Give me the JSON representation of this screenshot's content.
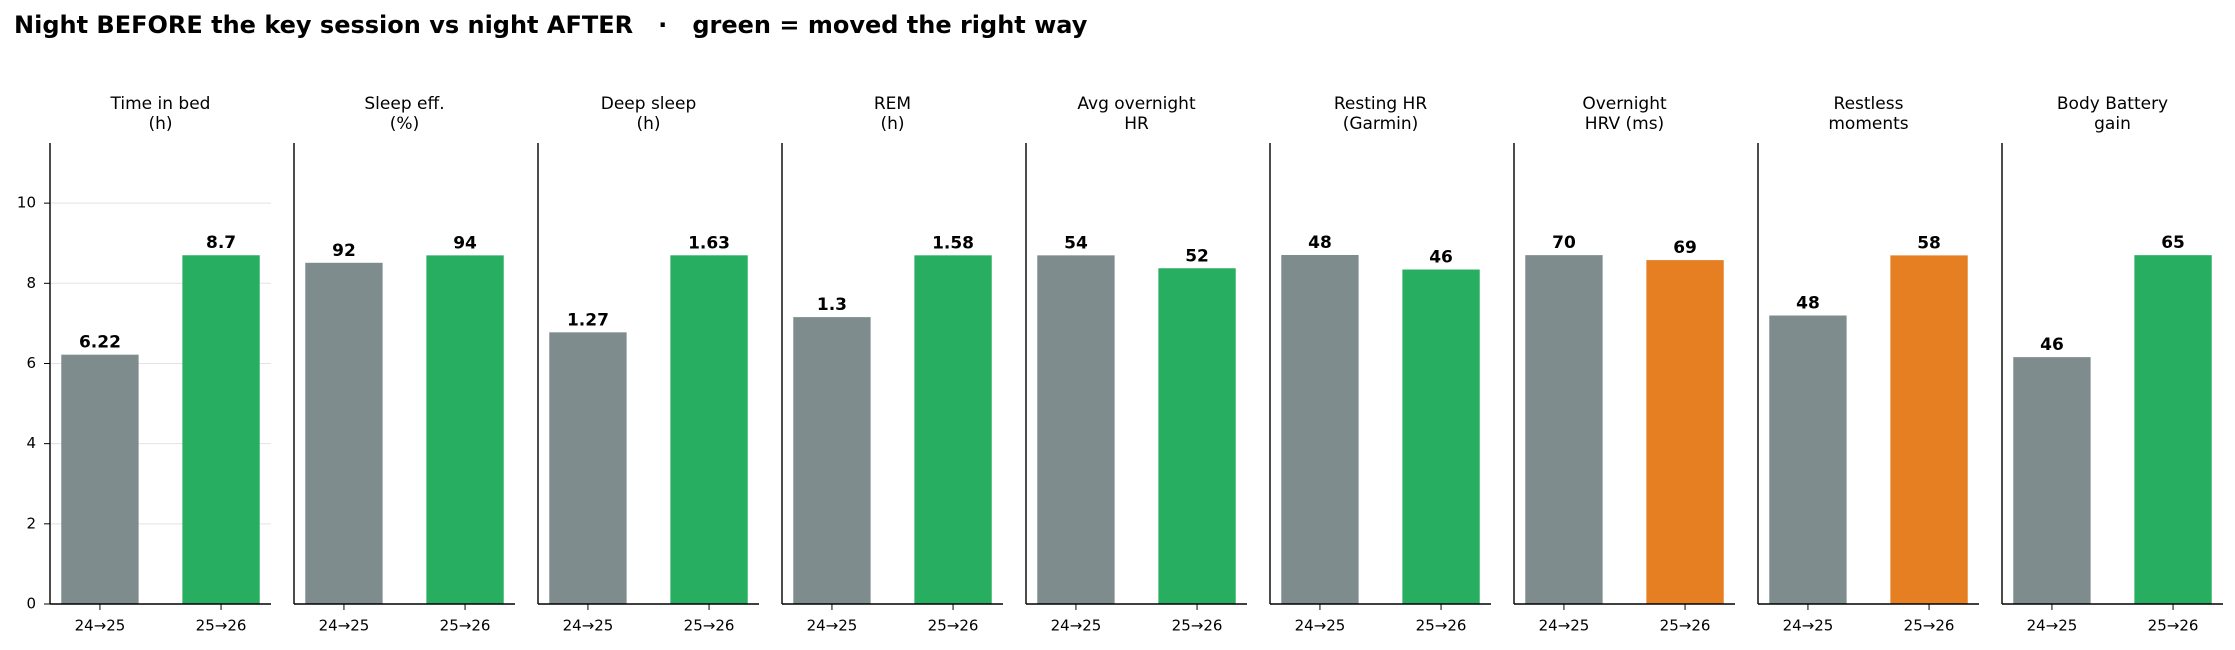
{
  "title": "Night BEFORE the key session vs night AFTER   ·   green = moved the right way",
  "chart_data": [
    {
      "type": "bar",
      "title": [
        "Time in bed",
        "(h)"
      ],
      "categories": [
        "24→25",
        "25→26"
      ],
      "values": [
        6.22,
        8.7
      ],
      "colors": [
        "#7f8c8d",
        "#27ae60"
      ],
      "ylim": [
        0,
        11.5
      ],
      "yticks": [
        0,
        2,
        4,
        6,
        8,
        10
      ],
      "grid": true
    },
    {
      "type": "bar",
      "title": [
        "Sleep eff.",
        "(%)"
      ],
      "categories": [
        "24→25",
        "25→26"
      ],
      "values": [
        92,
        94
      ],
      "colors": [
        "#7f8c8d",
        "#27ae60"
      ],
      "ylim": [
        0,
        124.3
      ]
    },
    {
      "type": "bar",
      "title": [
        "Deep sleep",
        "(h)"
      ],
      "categories": [
        "24→25",
        "25→26"
      ],
      "values": [
        1.27,
        1.63
      ],
      "colors": [
        "#7f8c8d",
        "#27ae60"
      ],
      "ylim": [
        0,
        2.155
      ]
    },
    {
      "type": "bar",
      "title": [
        "REM",
        "(h)"
      ],
      "categories": [
        "24→25",
        "25→26"
      ],
      "values": [
        1.3,
        1.58
      ],
      "colors": [
        "#7f8c8d",
        "#27ae60"
      ],
      "ylim": [
        0,
        2.089
      ]
    },
    {
      "type": "bar",
      "title": [
        "Avg overnight",
        "HR"
      ],
      "categories": [
        "24→25",
        "25→26"
      ],
      "values": [
        54,
        52
      ],
      "colors": [
        "#7f8c8d",
        "#27ae60"
      ],
      "ylim": [
        0,
        71.4
      ]
    },
    {
      "type": "bar",
      "title": [
        "Resting HR",
        "(Garmin)"
      ],
      "categories": [
        "24→25",
        "25→26"
      ],
      "values": [
        48,
        46
      ],
      "colors": [
        "#7f8c8d",
        "#27ae60"
      ],
      "ylim": [
        0,
        63.4
      ]
    },
    {
      "type": "bar",
      "title": [
        "Overnight",
        "HRV (ms)"
      ],
      "categories": [
        "24→25",
        "25→26"
      ],
      "values": [
        70,
        69
      ],
      "colors": [
        "#7f8c8d",
        "#e67e22"
      ],
      "ylim": [
        0,
        92.5
      ]
    },
    {
      "type": "bar",
      "title": [
        "Restless",
        "moments"
      ],
      "categories": [
        "24→25",
        "25→26"
      ],
      "values": [
        48,
        58
      ],
      "colors": [
        "#7f8c8d",
        "#e67e22"
      ],
      "ylim": [
        0,
        76.7
      ]
    },
    {
      "type": "bar",
      "title": [
        "Body Battery",
        "gain"
      ],
      "categories": [
        "24→25",
        "25→26"
      ],
      "values": [
        46,
        65
      ],
      "colors": [
        "#7f8c8d",
        "#27ae60"
      ],
      "ylim": [
        0,
        85.9
      ]
    }
  ]
}
